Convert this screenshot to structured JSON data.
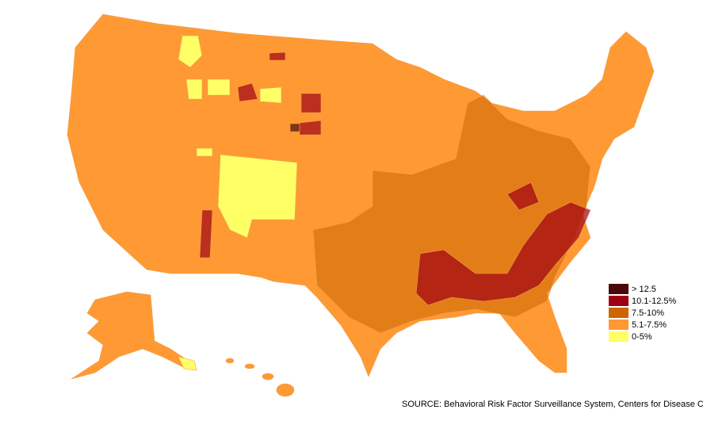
{
  "legend": {
    "items": [
      {
        "label": "> 12.5",
        "color": "#4a0a0a"
      },
      {
        "label": "10.1-12.5%",
        "color": "#a00014"
      },
      {
        "label": "7.5-10%",
        "color": "#cc6600"
      },
      {
        "label": "5.1-7.5%",
        "color": "#ff9933"
      },
      {
        "label": "0-5%",
        "color": "#ffff66"
      }
    ]
  },
  "source": "SOURCE: Behavioral Risk Factor Surveillance System, Centers for Disease Control"
}
